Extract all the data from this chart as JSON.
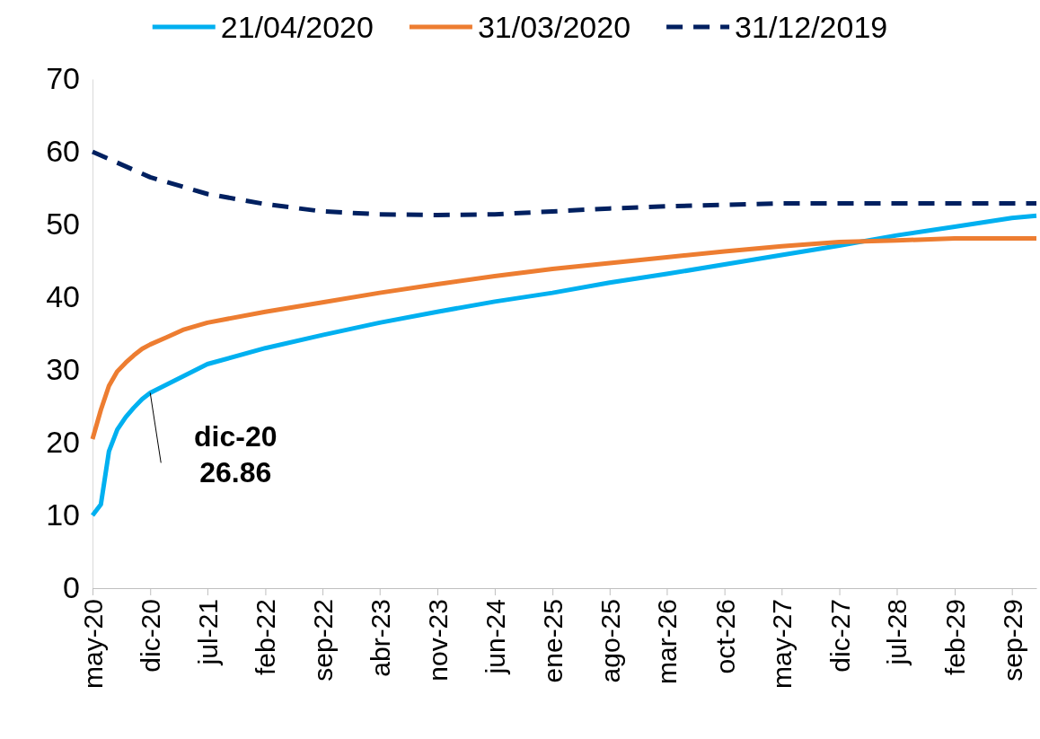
{
  "chart_data": {
    "type": "line",
    "xlim": [
      "2020-05",
      "2029-12"
    ],
    "ylim": [
      0,
      70
    ],
    "yticks": [
      0,
      10,
      20,
      30,
      40,
      50,
      60,
      70
    ],
    "xticks": [
      {
        "value": "2020-05",
        "label": "may-20"
      },
      {
        "value": "2020-12",
        "label": "dic-20"
      },
      {
        "value": "2021-07",
        "label": "jul-21"
      },
      {
        "value": "2022-02",
        "label": "feb-22"
      },
      {
        "value": "2022-09",
        "label": "sep-22"
      },
      {
        "value": "2023-04",
        "label": "abr-23"
      },
      {
        "value": "2023-11",
        "label": "nov-23"
      },
      {
        "value": "2024-06",
        "label": "jun-24"
      },
      {
        "value": "2025-01",
        "label": "ene-25"
      },
      {
        "value": "2025-08",
        "label": "ago-25"
      },
      {
        "value": "2026-03",
        "label": "mar-26"
      },
      {
        "value": "2026-10",
        "label": "oct-26"
      },
      {
        "value": "2027-05",
        "label": "may-27"
      },
      {
        "value": "2027-12",
        "label": "dic-27"
      },
      {
        "value": "2028-07",
        "label": "jul-28"
      },
      {
        "value": "2029-02",
        "label": "feb-29"
      },
      {
        "value": "2029-09",
        "label": "sep-29"
      }
    ],
    "grid": false,
    "legend": "top",
    "marker": "none",
    "series": [
      {
        "name": "21/04/2020",
        "color": "#00b0f0",
        "line_style": "solid",
        "x": [
          "2020-05",
          "2020-06",
          "2020-07",
          "2020-08",
          "2020-09",
          "2020-10",
          "2020-11",
          "2020-12",
          "2021-07",
          "2022-02",
          "2022-09",
          "2023-04",
          "2023-11",
          "2024-06",
          "2025-01",
          "2025-08",
          "2026-03",
          "2026-10",
          "2027-05",
          "2027-12",
          "2028-07",
          "2029-02",
          "2029-09",
          "2029-12"
        ],
        "values": [
          10,
          11.5,
          18.8,
          21.8,
          23.5,
          24.8,
          26,
          26.86,
          30.8,
          33,
          34.8,
          36.5,
          38,
          39.4,
          40.6,
          42,
          43.2,
          44.5,
          45.8,
          47.1,
          48.5,
          49.7,
          50.9,
          51.2
        ]
      },
      {
        "name": "31/03/2020",
        "color": "#ed7d31",
        "line_style": "solid",
        "x": [
          "2020-05",
          "2020-06",
          "2020-07",
          "2020-08",
          "2020-09",
          "2020-10",
          "2020-11",
          "2020-12",
          "2021-02",
          "2021-04",
          "2021-07",
          "2022-02",
          "2022-09",
          "2023-04",
          "2023-11",
          "2024-06",
          "2025-01",
          "2025-08",
          "2026-03",
          "2026-10",
          "2027-05",
          "2027-12",
          "2028-07",
          "2029-02",
          "2029-09",
          "2029-12"
        ],
        "values": [
          20.5,
          24.5,
          27.8,
          29.8,
          31,
          32,
          32.9,
          33.5,
          34.5,
          35.5,
          36.5,
          38,
          39.3,
          40.6,
          41.8,
          42.9,
          43.9,
          44.7,
          45.5,
          46.3,
          47,
          47.6,
          47.8,
          48.1,
          48.1,
          48.1
        ]
      },
      {
        "name": "31/12/2019",
        "color": "#002060",
        "line_style": "dashed",
        "x": [
          "2020-05",
          "2020-12",
          "2021-07",
          "2022-02",
          "2022-09",
          "2023-04",
          "2023-11",
          "2024-06",
          "2025-01",
          "2025-08",
          "2026-03",
          "2026-10",
          "2027-05",
          "2027-12",
          "2028-07",
          "2029-02",
          "2029-09",
          "2029-12"
        ],
        "values": [
          60,
          56.5,
          54.2,
          52.8,
          51.8,
          51.4,
          51.3,
          51.4,
          51.8,
          52.2,
          52.5,
          52.7,
          52.9,
          52.9,
          52.9,
          52.9,
          52.9,
          52.9
        ]
      }
    ],
    "annotations": [
      {
        "text": "dic-20\n26.86",
        "x": "2020-12",
        "y": 26.86
      }
    ]
  }
}
